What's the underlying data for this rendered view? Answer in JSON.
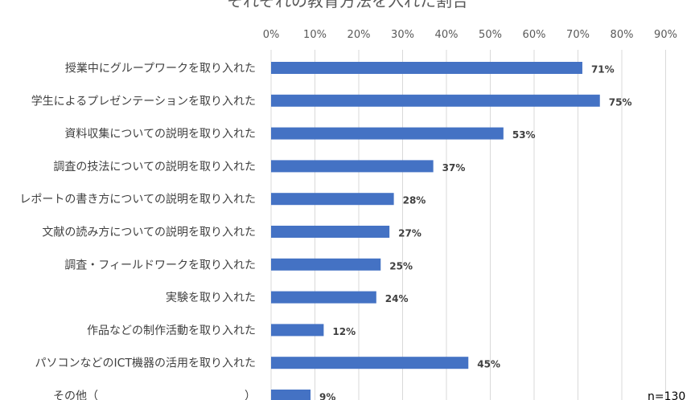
{
  "chart_data": {
    "type": "bar",
    "orientation": "horizontal",
    "title": "それぞれの教育方法を入れた割合",
    "x_ticks": [
      "0%",
      "10%",
      "20%",
      "30%",
      "40%",
      "50%",
      "60%",
      "70%",
      "80%",
      "90%"
    ],
    "xlim": [
      0,
      90
    ],
    "grid": true,
    "categories": [
      "授業中にグループワークを取り入れた",
      "学生によるプレゼンテーションを取り入れた",
      "資料収集についての説明を取り入れた",
      "調査の技法についての説明を取り入れた",
      "レポートの書き方についての説明を取り入れた",
      "文献の読み方についての説明を取り入れた",
      "調査・フィールドワークを取り入れた",
      "実験を取り入れた",
      "作品などの制作活動を取り入れた",
      "パソコンなどのICT機器の活用を取り入れた",
      "その他（　　　　　　　　　　　　　）"
    ],
    "values": [
      71,
      75,
      53,
      37,
      28,
      27,
      25,
      24,
      12,
      45,
      9
    ],
    "value_labels": [
      "71%",
      "75%",
      "53%",
      "37%",
      "28%",
      "27%",
      "25%",
      "24%",
      "12%",
      "45%",
      "9%"
    ],
    "bar_color": "#4472C4",
    "annotation": "n=130"
  }
}
